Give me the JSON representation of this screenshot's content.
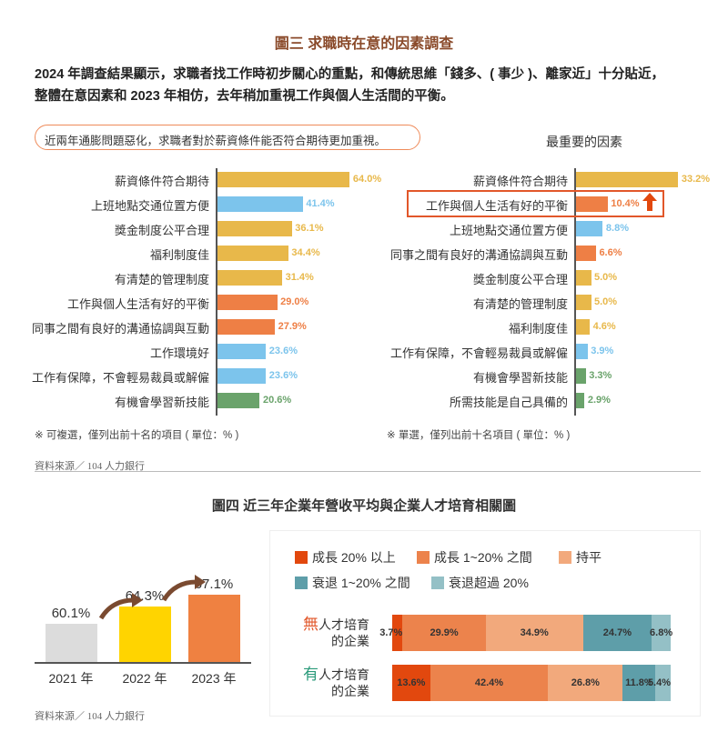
{
  "figure3": {
    "title": "圖三 求職時在意的因素調查",
    "intro_line1": "2024 年調查結果顯示，求職者找工作時初步關心的重點，和傳統思維「錢多、( 事少 )、離家近」十分貼近，",
    "intro_line2": "整體在意因素和 2023 年相仿，去年稍加重視工作與個人生活間的平衡。",
    "callout": "近兩年通膨問題惡化，求職者對於薪資條件能否符合期待更加重視。",
    "left_note": "※ 可複選，僅列出前十名的項目 ( 單位：% )",
    "right_note": "※ 單選，僅列出前十名項目 ( 單位：% )",
    "source": "資料來源／ 104 人力銀行",
    "colors": {
      "yellow": "#e8b84a",
      "blue": "#7cc4ec",
      "orange": "#ee7f45",
      "green": "#6aa36b",
      "highlight": "#e2572a"
    }
  },
  "figure4": {
    "title": "圖四 近三年企業年營收平均與企業人才培育相關圖",
    "source": "資料來源／ 104 人力銀行",
    "row_labels": [
      {
        "prefix": "無",
        "rest": "人才培育",
        "line2": "的企業",
        "prefix_color": "#e2572a"
      },
      {
        "prefix": "有",
        "rest": "人才培育",
        "line2": "的企業",
        "prefix_color": "#2a9a7a"
      }
    ]
  },
  "chart_data": [
    {
      "type": "bar",
      "orientation": "horizontal",
      "categories": [
        "薪資條件符合期待",
        "上班地點交通位置方便",
        "獎金制度公平合理",
        "福利制度佳",
        "有清楚的管理制度",
        "工作與個人生活有好的平衡",
        "同事之間有良好的溝通協調與互動",
        "工作環境好",
        "工作有保障，不會輕易裁員或解僱",
        "有機會學習新技能"
      ],
      "values": [
        64.0,
        41.4,
        36.1,
        34.4,
        31.4,
        29.0,
        27.9,
        23.6,
        23.6,
        20.6
      ],
      "labels": [
        "64.0%",
        "41.4%",
        "36.1%",
        "34.4%",
        "31.4%",
        "29.0%",
        "27.9%",
        "23.6%",
        "23.6%",
        "20.6%"
      ],
      "bar_colors": [
        "yellow",
        "blue",
        "yellow",
        "yellow",
        "yellow",
        "orange",
        "orange",
        "blue",
        "blue",
        "green"
      ]
    },
    {
      "type": "bar",
      "orientation": "horizontal",
      "title": "最重要的因素",
      "categories": [
        "薪資條件符合期待",
        "工作與個人生活有好的平衡",
        "上班地點交通位置方便",
        "同事之間有良好的溝通協調與互動",
        "獎金制度公平合理",
        "有清楚的管理制度",
        "福利制度佳",
        "工作有保障，不會輕易裁員或解僱",
        "有機會學習新技能",
        "所需技能是自己具備的"
      ],
      "values": [
        33.2,
        10.4,
        8.8,
        6.6,
        5.0,
        5.0,
        4.6,
        3.9,
        3.3,
        2.9
      ],
      "labels": [
        "33.2%",
        "10.4%",
        "8.8%",
        "6.6%",
        "5.0%",
        "5.0%",
        "4.6%",
        "3.9%",
        "3.3%",
        "2.9%"
      ],
      "bar_colors": [
        "yellow",
        "orange",
        "blue",
        "orange",
        "yellow",
        "yellow",
        "yellow",
        "blue",
        "green",
        "green"
      ],
      "highlighted": "工作與個人生活有好的平衡",
      "highlight_icon": "up-arrow-icon"
    },
    {
      "type": "bar",
      "categories": [
        "2021 年",
        "2022 年",
        "2023 年"
      ],
      "values": [
        60.1,
        64.3,
        67.1
      ],
      "labels": [
        "60.1%",
        "64.3%",
        "67.1%"
      ],
      "bar_colors": [
        "#dcdcdc",
        "#ffd400",
        "#ef8141"
      ],
      "trend_icon": "curved-arrow-icon"
    },
    {
      "type": "bar",
      "stacked": true,
      "orientation": "horizontal",
      "categories": [
        "無人才培育的企業",
        "有人才培育的企業"
      ],
      "series": [
        {
          "name": "成長 20% 以上",
          "color": "#e2480e",
          "values": [
            3.7,
            13.6
          ],
          "labels": [
            "3.7%",
            "13.6%"
          ]
        },
        {
          "name": "成長 1~20% 之間",
          "color": "#ec834c",
          "values": [
            29.9,
            42.4
          ],
          "labels": [
            "29.9%",
            "42.4%"
          ]
        },
        {
          "name": "持平",
          "color": "#f2a97c",
          "values": [
            34.9,
            26.8
          ],
          "labels": [
            "34.9%",
            "26.8%"
          ]
        },
        {
          "name": "衰退 1~20% 之間",
          "color": "#5e9ea9",
          "values": [
            24.7,
            11.8
          ],
          "labels": [
            "24.7%",
            "11.8%"
          ]
        },
        {
          "name": "衰退超過 20%",
          "color": "#94c0c6",
          "values": [
            6.8,
            5.4
          ],
          "labels": [
            "6.8%",
            "5.4%"
          ]
        }
      ],
      "legend_position": "top"
    }
  ]
}
